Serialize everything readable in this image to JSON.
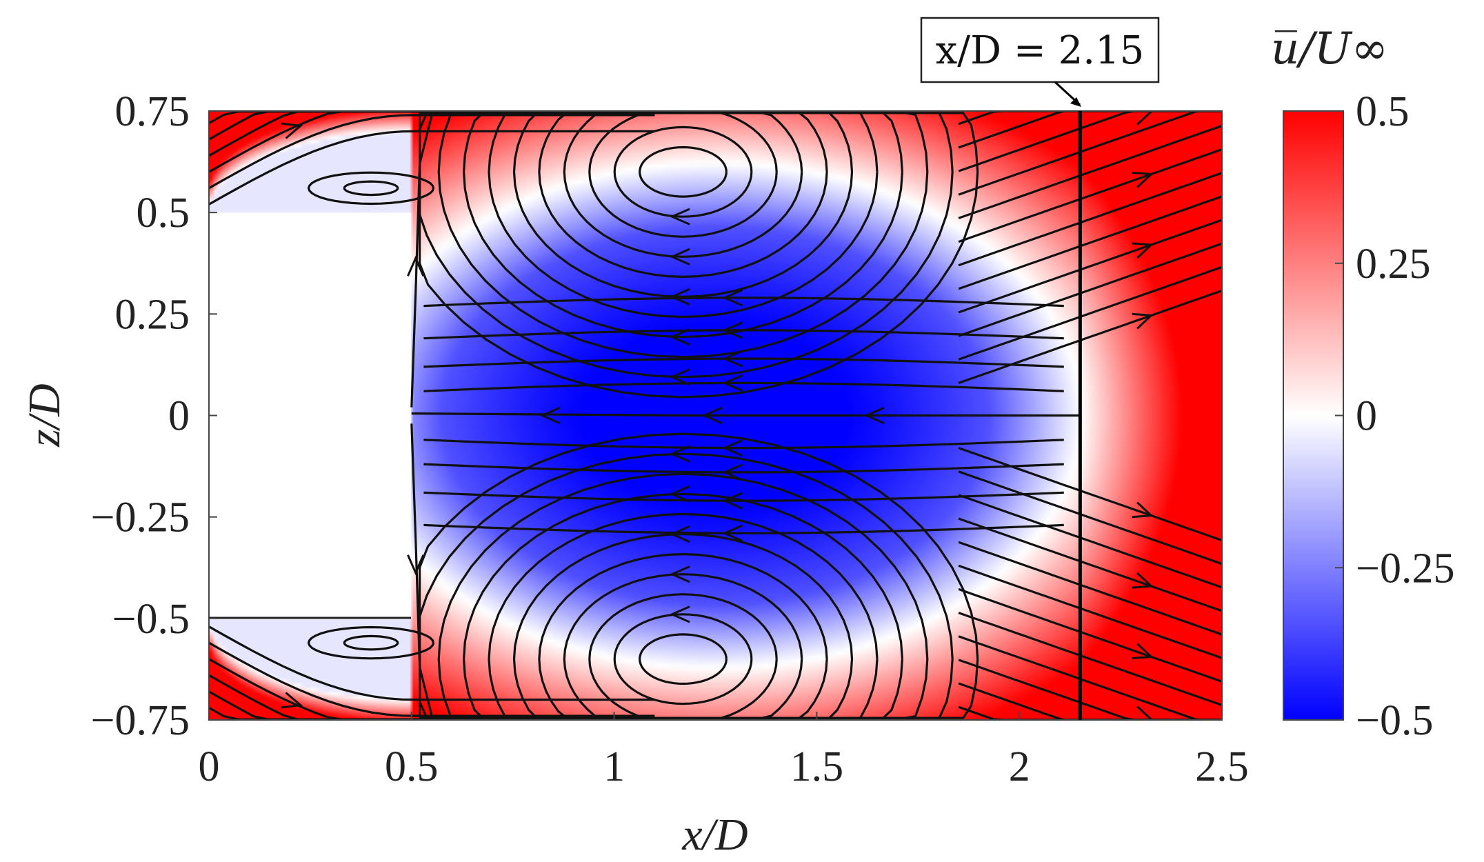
{
  "chart_data": {
    "type": "heatmap",
    "title": "",
    "xlabel": "x/D",
    "ylabel": "z/D",
    "xlim": [
      0,
      2.5
    ],
    "ylim": [
      -0.75,
      0.75
    ],
    "x_ticks": [
      0,
      0.5,
      1,
      1.5,
      2,
      2.5
    ],
    "x_tick_labels": [
      "0",
      "0.5",
      "1",
      "1.5",
      "2",
      "2.5"
    ],
    "y_ticks": [
      0.75,
      0.5,
      0.25,
      0,
      -0.25,
      -0.5,
      -0.75
    ],
    "y_tick_labels": [
      "0.75",
      "0.5",
      "0.25",
      "0",
      "−0.25",
      "−0.5",
      "−0.75"
    ],
    "colorbar": {
      "label": "u̅/U∞",
      "range": [
        -0.5,
        0.5
      ],
      "ticks": [
        0.5,
        0.25,
        0,
        -0.25,
        -0.5
      ],
      "tick_labels": [
        "0.5",
        "0.25",
        "0",
        "−0.25",
        "−0.5"
      ],
      "colormap": [
        "#0000ff",
        "#ffffff",
        "#ff0000"
      ]
    },
    "annotation": {
      "text": "x/D = 2.15",
      "x": 2.15
    },
    "obstacle": {
      "x_range": [
        0,
        0.5
      ],
      "z_range": [
        -0.5,
        0.5
      ]
    },
    "vortices": [
      {
        "x": 1.17,
        "z": 0.6
      },
      {
        "x": 1.17,
        "z": -0.6
      },
      {
        "x": 0.4,
        "z": 0.56
      },
      {
        "x": 0.4,
        "z": -0.56
      }
    ],
    "grid": false,
    "legend": "none"
  }
}
